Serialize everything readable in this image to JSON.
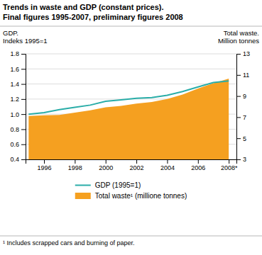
{
  "chart_data": {
    "type": "line",
    "title": "Trends in waste and GDP (constant prices).",
    "subtitle": "Final figures 1995-2007, preliminary figures 2008",
    "ylabel": [
      "GDP.",
      "Indeks 1995=1"
    ],
    "y2label": [
      "Total waste.",
      "Million tonnes"
    ],
    "footnote": "¹  Includes scrapped cars and burning of paper.",
    "x": [
      1995,
      1996,
      1997,
      1998,
      1999,
      2000,
      2001,
      2002,
      2003,
      2004,
      2005,
      2006,
      2007,
      2008
    ],
    "series": [
      {
        "name": "GDP (1995=1)",
        "type": "line",
        "color": "#2aada8",
        "values": [
          1.0,
          1.02,
          1.06,
          1.09,
          1.12,
          1.17,
          1.19,
          1.21,
          1.22,
          1.25,
          1.3,
          1.36,
          1.42,
          1.44
        ]
      },
      {
        "name": "Total waste¹ (millione tonnes)",
        "type": "area",
        "color": "#f5a020",
        "values": [
          0.975,
          0.985,
          0.99,
          1.02,
          1.05,
          1.09,
          1.11,
          1.14,
          1.16,
          1.2,
          1.26,
          1.34,
          1.41,
          1.47
        ]
      }
    ],
    "xlim": [
      1994.8,
      2008.5
    ],
    "xticks": [
      1996,
      1998,
      2000,
      2002,
      2004,
      2006,
      {
        "value": 2008,
        "label": "2008*"
      }
    ],
    "ylim": [
      0.4,
      1.8
    ],
    "yticks": [
      0.4,
      0.6,
      0.8,
      {
        "value": 1.0,
        "label": "1.0"
      },
      1.2,
      1.4,
      1.6,
      1.8
    ],
    "y2lim": [
      3.0,
      13.0
    ],
    "y2ticks": [
      3.0,
      5.0,
      7.0,
      9.0,
      11.0,
      13.0
    ],
    "grid": true,
    "legend": "bottom"
  }
}
